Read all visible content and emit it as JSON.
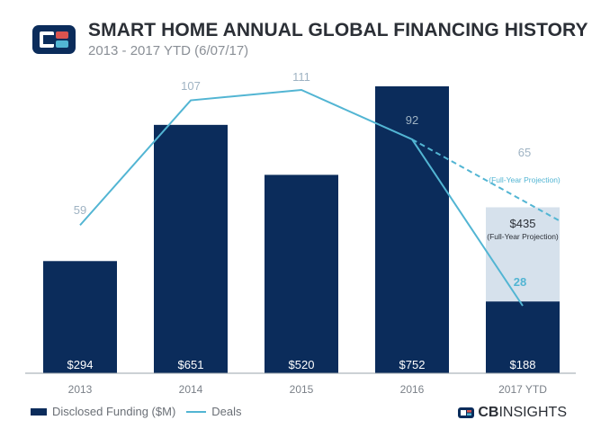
{
  "header": {
    "title": "SMART HOME ANNUAL GLOBAL FINANCING HISTORY",
    "subtitle": "2013 - 2017 YTD (6/07/17)"
  },
  "brand": {
    "bold": "CB",
    "rest": "INSIGHTS"
  },
  "legend": {
    "funding": "Disclosed Funding ($M)",
    "deals": "Deals"
  },
  "colors": {
    "bar": "#0b2c5b",
    "projection_bar": "#d6e1ec",
    "line": "#52b5d3",
    "label": "#9fb3c3",
    "axis": "#9aa3ab"
  },
  "chart_data": {
    "type": "bar",
    "categories": [
      "2013",
      "2014",
      "2015",
      "2016",
      "2017 YTD"
    ],
    "series": [
      {
        "name": "Disclosed Funding ($M)",
        "values": [
          294,
          651,
          520,
          752,
          188
        ],
        "labels": [
          "$294",
          "$651",
          "$520",
          "$752",
          "$188"
        ]
      },
      {
        "name": "Deals",
        "type": "line",
        "values": [
          59,
          107,
          111,
          92,
          28
        ],
        "labels": [
          "59",
          "107",
          "111",
          "92",
          "28"
        ]
      }
    ],
    "projection": {
      "funding_value": 435,
      "funding_label": "$435",
      "funding_note": "(Full-Year Projection)",
      "deals_value": 65,
      "deals_label": "65",
      "deals_note": "(Full-Year Projection)"
    }
  }
}
